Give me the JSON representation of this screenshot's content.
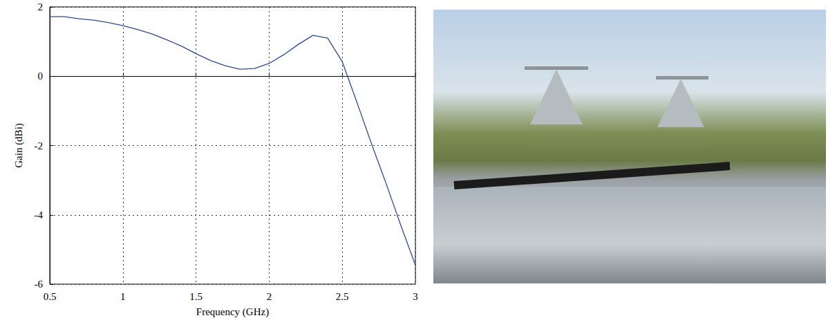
{
  "chart_data": {
    "type": "line",
    "x_label": "Frequency (GHz)",
    "y_label": "Gain (dBi)",
    "x": [
      0.5,
      0.6,
      0.7,
      0.8,
      0.9,
      1.0,
      1.1,
      1.2,
      1.3,
      1.4,
      1.5,
      1.6,
      1.7,
      1.8,
      1.9,
      2.0,
      2.1,
      2.2,
      2.3,
      2.4,
      2.5,
      2.6,
      2.7,
      2.8,
      2.9,
      3.0
    ],
    "values": [
      1.72,
      1.72,
      1.66,
      1.62,
      1.55,
      1.46,
      1.35,
      1.22,
      1.05,
      0.87,
      0.65,
      0.45,
      0.3,
      0.2,
      0.22,
      0.37,
      0.62,
      0.92,
      1.18,
      1.1,
      0.42,
      -0.75,
      -1.95,
      -3.1,
      -4.3,
      -5.45
    ],
    "color": "#2a4b9b",
    "xlim": [
      0.5,
      3
    ],
    "xticks": [
      0.5,
      1,
      1.5,
      2,
      2.5,
      3
    ],
    "ylim": [
      -6,
      2
    ],
    "yticks": [
      -6,
      -4,
      -2,
      0,
      2
    ],
    "grid": true
  }
}
